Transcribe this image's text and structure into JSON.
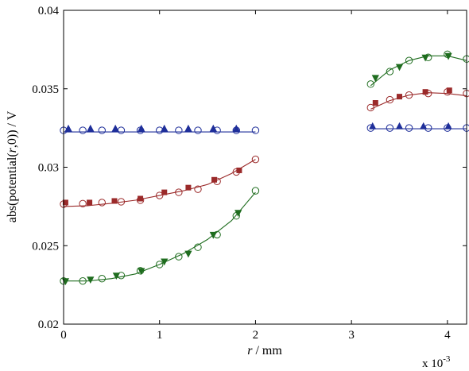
{
  "chart_data": {
    "type": "scatter",
    "title": "",
    "xlabel": "r / mm",
    "xlabel_italic_part": "r",
    "xlabel_rest": " / mm",
    "ylabel": "abs(potential(r,0)) / V",
    "ylabel_prefix": "abs(potential(",
    "ylabel_italic_part": "r",
    "ylabel_suffix": ",0)) / V",
    "x_multiplier_label": "x 10",
    "x_multiplier_exponent": "-3",
    "xlim": [
      0,
      4.2
    ],
    "ylim": [
      0.02,
      0.04
    ],
    "xticks": [
      0,
      1,
      2,
      3,
      4
    ],
    "xtick_labels": [
      "0",
      "1",
      "2",
      "3",
      "4"
    ],
    "yticks": [
      0.02,
      0.025,
      0.03,
      0.035,
      0.04
    ],
    "ytick_labels": [
      "0.02",
      "0.025",
      "0.03",
      "0.035",
      "0.04"
    ],
    "grid": false,
    "legend": "none",
    "colors": {
      "blue": "#1f2f9a",
      "red": "#9b2a2a",
      "green": "#1f6d1f"
    },
    "series": [
      {
        "color": "blue",
        "kind": "line",
        "x": [
          0,
          2
        ],
        "y": [
          0.03225,
          0.03225
        ]
      },
      {
        "color": "blue",
        "kind": "line",
        "x": [
          3.2,
          4.2
        ],
        "y": [
          0.03245,
          0.03245
        ]
      },
      {
        "color": "red",
        "kind": "line",
        "x": [
          0,
          0.25,
          0.5,
          0.75,
          1.0,
          1.25,
          1.5,
          1.75,
          2.0
        ],
        "y": [
          0.0275,
          0.02755,
          0.0277,
          0.0279,
          0.0282,
          0.0285,
          0.0289,
          0.0296,
          0.0305
        ]
      },
      {
        "color": "red",
        "kind": "line",
        "x": [
          3.2,
          3.4,
          3.6,
          3.8,
          4.0,
          4.2
        ],
        "y": [
          0.0337,
          0.03425,
          0.0346,
          0.03475,
          0.0347,
          0.03455
        ]
      },
      {
        "color": "green",
        "kind": "line",
        "x": [
          0,
          0.25,
          0.5,
          0.75,
          1.0,
          1.25,
          1.5,
          1.75,
          2.0
        ],
        "y": [
          0.02275,
          0.02275,
          0.0229,
          0.0232,
          0.0238,
          0.0245,
          0.0254,
          0.0266,
          0.0284
        ]
      },
      {
        "color": "green",
        "kind": "line",
        "x": [
          3.2,
          3.4,
          3.6,
          3.8,
          4.0,
          4.2
        ],
        "y": [
          0.0352,
          0.0362,
          0.0368,
          0.0371,
          0.0371,
          0.0368
        ]
      },
      {
        "color": "blue",
        "kind": "circle",
        "x": [
          0,
          0.2,
          0.4,
          0.6,
          0.8,
          1.0,
          1.2,
          1.4,
          1.6,
          1.8,
          2.0,
          3.2,
          3.4,
          3.6,
          3.8,
          4.0,
          4.2
        ],
        "y": [
          0.03235,
          0.03235,
          0.03235,
          0.03235,
          0.03235,
          0.03235,
          0.03235,
          0.03235,
          0.03235,
          0.03235,
          0.03235,
          0.0325,
          0.0325,
          0.0325,
          0.0325,
          0.0325,
          0.0325
        ]
      },
      {
        "color": "blue",
        "kind": "triangle-up",
        "x": [
          0.05,
          0.28,
          0.54,
          0.81,
          1.05,
          1.3,
          1.56,
          1.8,
          3.22,
          3.5,
          3.75,
          4.01
        ],
        "y": [
          0.03245,
          0.03245,
          0.03245,
          0.03245,
          0.03245,
          0.03245,
          0.03245,
          0.03245,
          0.0326,
          0.0326,
          0.0326,
          0.0326
        ]
      },
      {
        "color": "red",
        "kind": "circle",
        "x": [
          0,
          0.2,
          0.4,
          0.6,
          0.8,
          1.0,
          1.2,
          1.4,
          1.6,
          1.8,
          2.0,
          3.2,
          3.4,
          3.6,
          3.8,
          4.0,
          4.2
        ],
        "y": [
          0.02765,
          0.02768,
          0.02775,
          0.0278,
          0.0279,
          0.0282,
          0.0284,
          0.0286,
          0.0291,
          0.0297,
          0.0305,
          0.0338,
          0.0343,
          0.0346,
          0.0347,
          0.0348,
          0.0347
        ]
      },
      {
        "color": "red",
        "kind": "square",
        "x": [
          0.02,
          0.27,
          0.53,
          0.8,
          1.05,
          1.3,
          1.57,
          1.83,
          3.25,
          3.5,
          3.77,
          4.02
        ],
        "y": [
          0.02775,
          0.02775,
          0.02785,
          0.028,
          0.0284,
          0.0287,
          0.0292,
          0.0298,
          0.0341,
          0.0345,
          0.0348,
          0.0349
        ]
      },
      {
        "color": "green",
        "kind": "circle",
        "x": [
          0,
          0.2,
          0.4,
          0.6,
          0.8,
          1.0,
          1.2,
          1.4,
          1.6,
          1.8,
          2.0,
          3.2,
          3.4,
          3.6,
          3.8,
          4.0,
          4.2
        ],
        "y": [
          0.02275,
          0.02275,
          0.0229,
          0.0231,
          0.0234,
          0.0238,
          0.0243,
          0.0249,
          0.0257,
          0.0269,
          0.0285,
          0.0353,
          0.0361,
          0.0368,
          0.037,
          0.0372,
          0.0369
        ]
      },
      {
        "color": "green",
        "kind": "triangle-down",
        "x": [
          0.02,
          0.28,
          0.55,
          0.81,
          1.05,
          1.3,
          1.56,
          1.82,
          3.25,
          3.5,
          3.77,
          4.01
        ],
        "y": [
          0.02275,
          0.02285,
          0.0231,
          0.0234,
          0.024,
          0.0245,
          0.0257,
          0.0271,
          0.0357,
          0.0364,
          0.037,
          0.0371
        ]
      }
    ]
  }
}
